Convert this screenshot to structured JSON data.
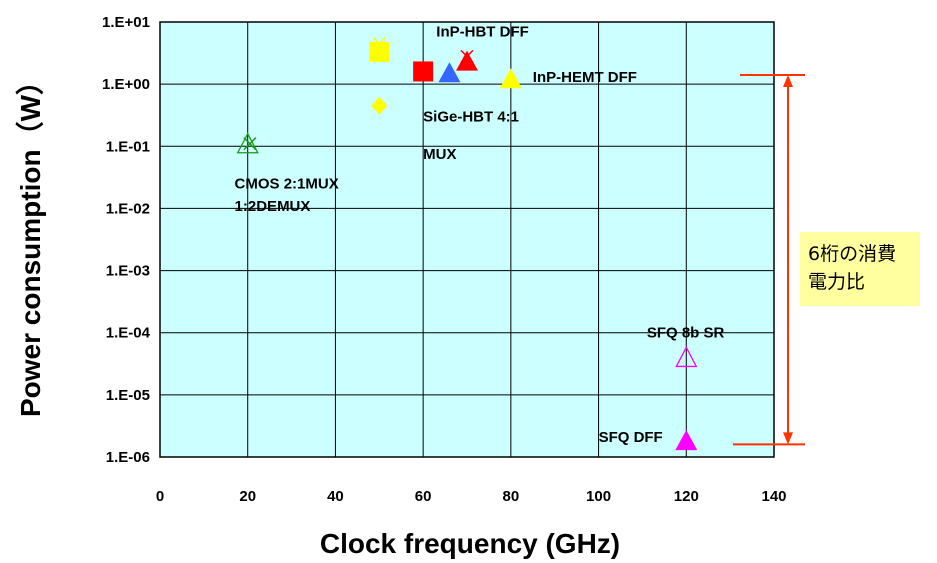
{
  "chart_data": {
    "type": "scatter",
    "title": "",
    "xlabel": "Clock frequency (GHz)",
    "ylabel": "Power consumption（W）",
    "xlim": [
      0,
      140
    ],
    "ylim": [
      1e-06,
      10
    ],
    "y_scale": "log",
    "grid": true,
    "x_ticks": [
      0,
      20,
      40,
      60,
      80,
      100,
      120,
      140
    ],
    "x_tick_labels": [
      "0",
      "20",
      "40",
      "60",
      "80",
      "100",
      "120",
      "140"
    ],
    "y_ticks": [
      10,
      1,
      0.1,
      0.01,
      0.001,
      0.0001,
      1e-05,
      1e-06
    ],
    "y_tick_labels": [
      "1.E+01",
      "1.E+00",
      "1.E-01",
      "1.E-02",
      "1.E-03",
      "1.E-04",
      "1.E-05",
      "1.E-06"
    ],
    "points": [
      {
        "x": 20,
        "y": 0.11,
        "marker": "triangle-open",
        "color": "#1a9a1a"
      },
      {
        "x": 20.5,
        "y": 0.11,
        "marker": "x",
        "color": "#1a9a1a"
      },
      {
        "x": 50,
        "y": 3.3,
        "marker": "square",
        "color": "#ffff00"
      },
      {
        "x": 50,
        "y": 4.5,
        "marker": "x",
        "color": "#ffff00"
      },
      {
        "x": 50,
        "y": 0.45,
        "marker": "diamond",
        "color": "#ffff00"
      },
      {
        "x": 60,
        "y": 1.6,
        "marker": "square",
        "color": "#ff0000"
      },
      {
        "x": 66,
        "y": 1.5,
        "marker": "triangle",
        "color": "#3366ff"
      },
      {
        "x": 70,
        "y": 2.3,
        "marker": "triangle",
        "color": "#ff0000"
      },
      {
        "x": 70,
        "y": 2.8,
        "marker": "x",
        "color": "#ff0000"
      },
      {
        "x": 80,
        "y": 1.2,
        "marker": "triangle",
        "color": "#ffff00"
      },
      {
        "x": 120,
        "y": 4e-05,
        "marker": "triangle-open",
        "color": "#ff00ff"
      },
      {
        "x": 120,
        "y": 1.8e-06,
        "marker": "triangle",
        "color": "#ff00ff"
      }
    ],
    "annotations": [
      {
        "text": "CMOS 2:1MUX",
        "x": 17,
        "y": 0.025
      },
      {
        "text": "1:2DEMUX",
        "x": 17,
        "y": 0.011
      },
      {
        "text": "InP-HBT DFF",
        "x": 63,
        "y": 7
      },
      {
        "text": "SiGe-HBT 4:1",
        "x": 60,
        "y": 0.3
      },
      {
        "text": "MUX",
        "x": 60,
        "y": 0.075
      },
      {
        "text": "InP-HEMT DFF",
        "x": 85,
        "y": 1.3
      },
      {
        "text": "SFQ 8b SR",
        "x": 111,
        "y": 0.0001
      },
      {
        "text": "SFQ DFF",
        "x": 100,
        "y": 2.1e-06
      }
    ],
    "range_marker": {
      "y_top": 1.4,
      "y_bottom": 1.6e-06,
      "color": "#ff3300",
      "note_lines": [
        "6桁の消費",
        "電力比"
      ],
      "note_background": "#ffffa0"
    },
    "plot_background": "#ccffff"
  }
}
